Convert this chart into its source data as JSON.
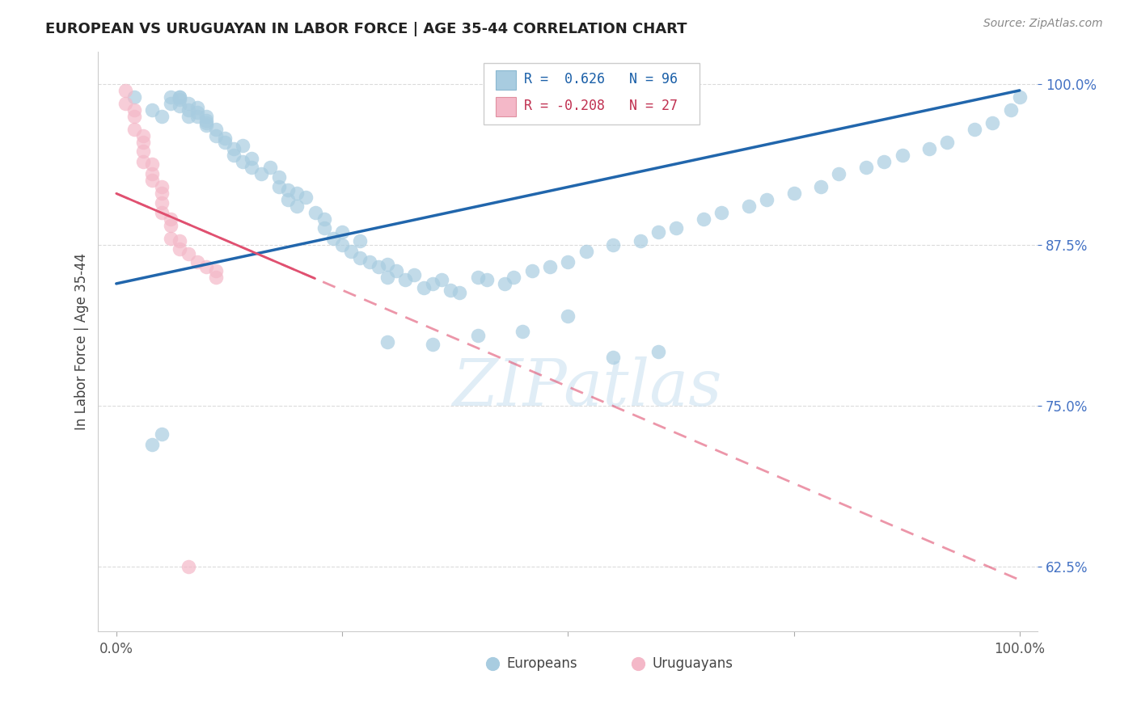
{
  "title": "EUROPEAN VS URUGUAYAN IN LABOR FORCE | AGE 35-44 CORRELATION CHART",
  "source": "Source: ZipAtlas.com",
  "ylabel": "In Labor Force | Age 35-44",
  "legend_label_blue": "Europeans",
  "legend_label_pink": "Uruguayans",
  "R_blue": 0.626,
  "N_blue": 96,
  "R_pink": -0.208,
  "N_pink": 27,
  "color_blue": "#a8cce0",
  "color_pink": "#f4b8c8",
  "color_trendline_blue": "#2166ac",
  "color_trendline_pink": "#e05070",
  "color_grid": "#cccccc",
  "background_color": "#ffffff",
  "watermark_text": "ZIPatlas",
  "ymin": 0.575,
  "ymax": 1.025,
  "xmin": -0.02,
  "xmax": 1.02,
  "yticks": [
    0.625,
    0.75,
    0.875,
    1.0
  ],
  "ytick_labels": [
    "62.5%",
    "75.0%",
    "87.5%",
    "100.0%"
  ],
  "blue_trend_x0": 0.0,
  "blue_trend_y0": 0.845,
  "blue_trend_x1": 1.0,
  "blue_trend_y1": 0.995,
  "pink_trend_x0": 0.0,
  "pink_trend_y0": 0.915,
  "pink_trend_x1": 1.0,
  "pink_trend_y1": 0.615,
  "europeans_x": [
    0.02,
    0.04,
    0.05,
    0.06,
    0.06,
    0.07,
    0.07,
    0.07,
    0.07,
    0.08,
    0.08,
    0.08,
    0.09,
    0.09,
    0.09,
    0.1,
    0.1,
    0.1,
    0.1,
    0.11,
    0.11,
    0.12,
    0.12,
    0.13,
    0.13,
    0.14,
    0.14,
    0.15,
    0.15,
    0.16,
    0.17,
    0.18,
    0.18,
    0.19,
    0.19,
    0.2,
    0.2,
    0.21,
    0.22,
    0.23,
    0.23,
    0.24,
    0.25,
    0.25,
    0.26,
    0.27,
    0.27,
    0.28,
    0.29,
    0.3,
    0.3,
    0.31,
    0.32,
    0.33,
    0.34,
    0.35,
    0.36,
    0.37,
    0.38,
    0.4,
    0.41,
    0.43,
    0.44,
    0.46,
    0.48,
    0.5,
    0.52,
    0.55,
    0.58,
    0.6,
    0.62,
    0.65,
    0.67,
    0.7,
    0.72,
    0.75,
    0.78,
    0.8,
    0.83,
    0.85,
    0.87,
    0.9,
    0.92,
    0.95,
    0.97,
    0.99,
    1.0,
    0.3,
    0.35,
    0.4,
    0.45,
    0.5,
    0.55,
    0.6,
    0.04,
    0.05
  ],
  "europeans_y": [
    0.99,
    0.98,
    0.975,
    0.99,
    0.985,
    0.99,
    0.988,
    0.983,
    0.99,
    0.985,
    0.975,
    0.98,
    0.975,
    0.978,
    0.982,
    0.97,
    0.968,
    0.975,
    0.972,
    0.96,
    0.965,
    0.958,
    0.955,
    0.95,
    0.945,
    0.952,
    0.94,
    0.942,
    0.935,
    0.93,
    0.935,
    0.928,
    0.92,
    0.918,
    0.91,
    0.915,
    0.905,
    0.912,
    0.9,
    0.895,
    0.888,
    0.88,
    0.885,
    0.875,
    0.87,
    0.878,
    0.865,
    0.862,
    0.858,
    0.86,
    0.85,
    0.855,
    0.848,
    0.852,
    0.842,
    0.845,
    0.848,
    0.84,
    0.838,
    0.85,
    0.848,
    0.845,
    0.85,
    0.855,
    0.858,
    0.862,
    0.87,
    0.875,
    0.878,
    0.885,
    0.888,
    0.895,
    0.9,
    0.905,
    0.91,
    0.915,
    0.92,
    0.93,
    0.935,
    0.94,
    0.945,
    0.95,
    0.955,
    0.965,
    0.97,
    0.98,
    0.99,
    0.8,
    0.798,
    0.805,
    0.808,
    0.82,
    0.788,
    0.792,
    0.72,
    0.728
  ],
  "uruguayans_x": [
    0.01,
    0.01,
    0.02,
    0.02,
    0.02,
    0.03,
    0.03,
    0.03,
    0.03,
    0.04,
    0.04,
    0.04,
    0.05,
    0.05,
    0.05,
    0.05,
    0.06,
    0.06,
    0.06,
    0.07,
    0.07,
    0.08,
    0.09,
    0.1,
    0.11,
    0.11,
    0.08
  ],
  "uruguayans_y": [
    0.995,
    0.985,
    0.98,
    0.975,
    0.965,
    0.96,
    0.955,
    0.948,
    0.94,
    0.938,
    0.93,
    0.925,
    0.92,
    0.915,
    0.908,
    0.9,
    0.895,
    0.89,
    0.88,
    0.878,
    0.872,
    0.868,
    0.862,
    0.858,
    0.855,
    0.85,
    0.625
  ]
}
